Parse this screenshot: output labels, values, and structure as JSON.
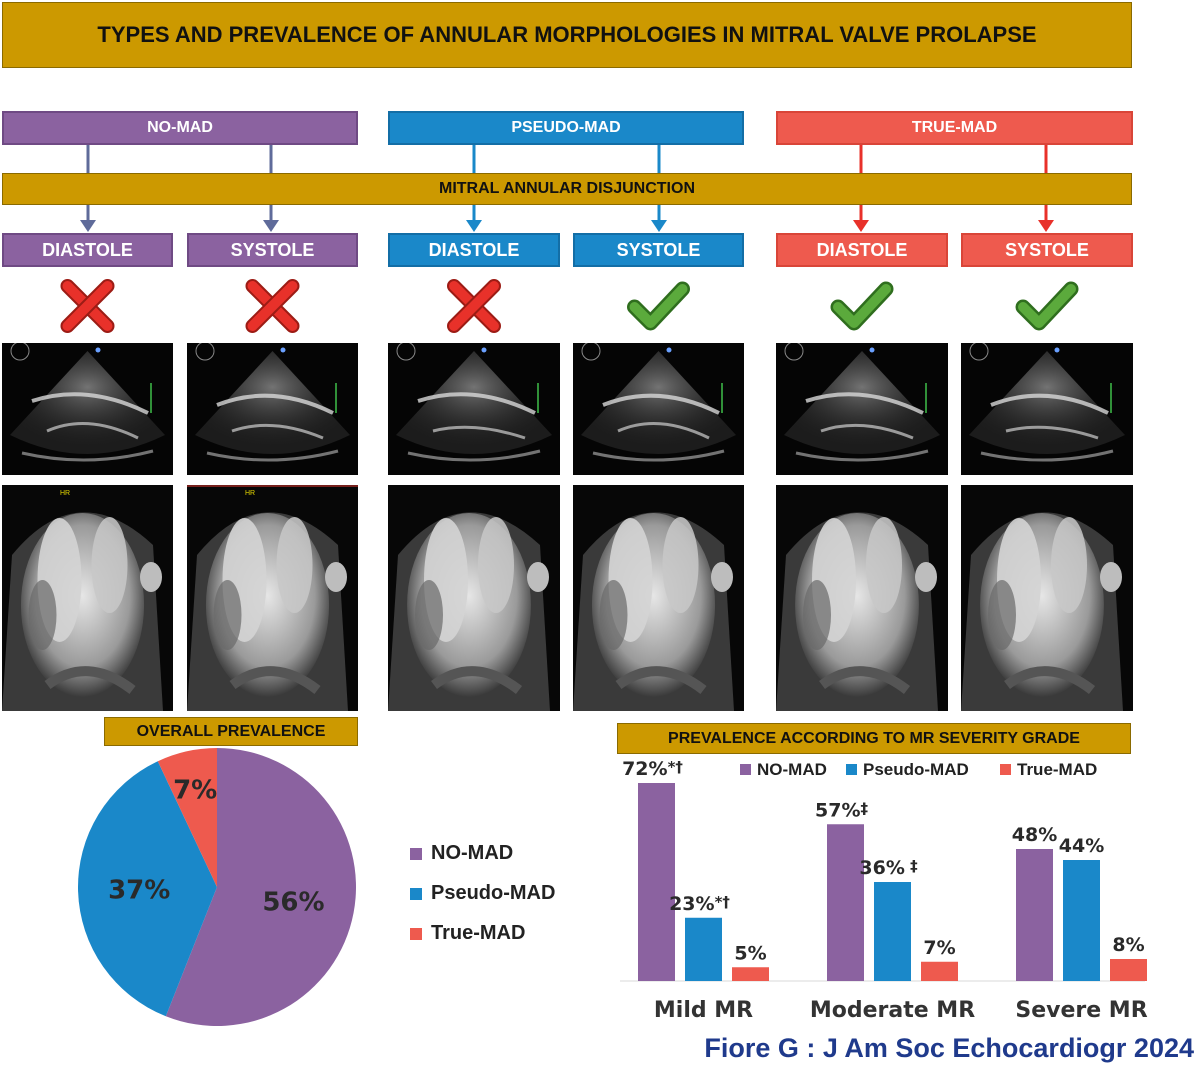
{
  "title": "TYPES AND PREVALENCE OF ANNULAR MORPHOLOGIES IN MITRAL VALVE PROLAPSE",
  "groups": [
    {
      "label": "NO-MAD",
      "color": "#8B62A0"
    },
    {
      "label": "PSEUDO-MAD",
      "color": "#1A88C9"
    },
    {
      "label": "TRUE-MAD",
      "color": "#EE5A4E"
    }
  ],
  "mad_label": "MITRAL ANNULAR DISJUNCTION",
  "phases": [
    {
      "label": "DIASTOLE",
      "group": "NO-MAD",
      "mad": false
    },
    {
      "label": "SYSTOLE",
      "group": "NO-MAD",
      "mad": false
    },
    {
      "label": "DIASTOLE",
      "group": "PSEUDO-MAD",
      "mad": false
    },
    {
      "label": "SYSTOLE",
      "group": "PSEUDO-MAD",
      "mad": true
    },
    {
      "label": "DIASTOLE",
      "group": "TRUE-MAD",
      "mad": true
    },
    {
      "label": "SYSTOLE",
      "group": "TRUE-MAD",
      "mad": true
    }
  ],
  "mark_colors": {
    "cross": "#E8312A",
    "check": "#5BAA3C"
  },
  "echo_marker": "HR",
  "overall": {
    "heading": "OVERALL PREVALENCE"
  },
  "severity": {
    "heading": "PREVALENCE ACCORDING TO MR SEVERITY GRADE"
  },
  "legend": [
    "NO-MAD",
    "Pseudo-MAD",
    "True-MAD"
  ],
  "chart_data": [
    {
      "type": "pie",
      "labels": [
        "NO-MAD",
        "Pseudo-MAD",
        "True-MAD"
      ],
      "values": [
        56,
        37,
        7
      ],
      "value_labels": [
        "56%",
        "37%",
        "7%"
      ],
      "colors": [
        "#8B62A0",
        "#1A88C9",
        "#EE5A4E"
      ],
      "legend_position": "right"
    },
    {
      "type": "bar",
      "categories": [
        "Mild MR",
        "Moderate MR",
        "Severe MR"
      ],
      "series": [
        {
          "name": "NO-MAD",
          "values": [
            72,
            57,
            48
          ],
          "labels": [
            "72%",
            "57%",
            "48%"
          ],
          "marks": [
            "*†",
            "‡",
            ""
          ],
          "color": "#8B62A0"
        },
        {
          "name": "Pseudo-MAD",
          "values": [
            23,
            36,
            44
          ],
          "labels": [
            "23%",
            "36%",
            "44%"
          ],
          "marks": [
            "*†",
            " ‡",
            ""
          ],
          "color": "#1A88C9"
        },
        {
          "name": "True-MAD",
          "values": [
            5,
            7,
            8
          ],
          "labels": [
            "5%",
            "7%",
            "8%"
          ],
          "marks": [
            "",
            "",
            ""
          ],
          "color": "#EE5A4E"
        }
      ],
      "legend_position": "top",
      "grid": false
    }
  ],
  "citation": "Fiore G : J Am Soc Echocardiogr 2024"
}
